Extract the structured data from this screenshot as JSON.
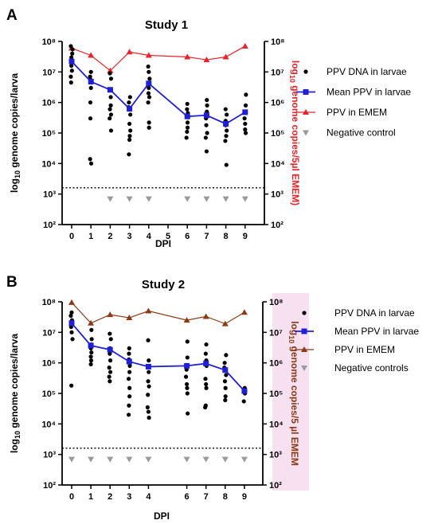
{
  "colors": {
    "dots": "#000000",
    "mean": "#1f1fd6",
    "emem_1": "#e8232a",
    "emem_2": "#8b3a14",
    "negative": "#9a9a9a",
    "highlight": "#f7e0f0"
  },
  "chart_data": [
    {
      "type": "scatter",
      "panel_label": "A",
      "title": "Study 1",
      "xlabel": "DPI",
      "ylabel_left": "log10 genome copies/larva",
      "ylabel_right": "log10 genome copies/5µl EMEM)",
      "y_scale": "log10",
      "ylim": [
        100,
        100000000
      ],
      "x_ticks": [
        0,
        1,
        2,
        3,
        4,
        5,
        6,
        7,
        8,
        9
      ],
      "y_tick_labels": [
        "10²",
        "10³",
        "10⁴",
        "10⁵",
        "10⁶",
        "10⁷",
        "10⁸"
      ],
      "detection_limit": 1600,
      "legend_placement": "right",
      "series": [
        {
          "name": "PPV DNA in larvae",
          "marker": "circle",
          "points": [
            [
              0,
              70000000
            ],
            [
              0,
              55000000
            ],
            [
              0,
              40000000
            ],
            [
              0,
              30000000
            ],
            [
              0,
              22000000
            ],
            [
              0,
              16000000
            ],
            [
              0,
              11000000
            ],
            [
              0,
              7000000
            ],
            [
              0,
              4500000
            ],
            [
              1,
              10000000
            ],
            [
              1,
              7000000
            ],
            [
              1,
              5500000
            ],
            [
              1,
              3000000
            ],
            [
              1,
              1000000
            ],
            [
              1,
              300000
            ],
            [
              1,
              14000
            ],
            [
              1,
              10000
            ],
            [
              2,
              9000000
            ],
            [
              2,
              6000000
            ],
            [
              2,
              2500000
            ],
            [
              2,
              1500000
            ],
            [
              2,
              800000
            ],
            [
              2,
              600000
            ],
            [
              2,
              400000
            ],
            [
              2,
              300000
            ],
            [
              2,
              120000
            ],
            [
              3,
              1500000
            ],
            [
              3,
              1000000
            ],
            [
              3,
              700000
            ],
            [
              3,
              400000
            ],
            [
              3,
              200000
            ],
            [
              3,
              120000
            ],
            [
              3,
              80000
            ],
            [
              3,
              60000
            ],
            [
              3,
              20000
            ],
            [
              4,
              15000000
            ],
            [
              4,
              10000000
            ],
            [
              4,
              6000000
            ],
            [
              4,
              3000000
            ],
            [
              4,
              2000000
            ],
            [
              4,
              1500000
            ],
            [
              4,
              1000000
            ],
            [
              4,
              220000
            ],
            [
              4,
              150000
            ],
            [
              6,
              900000
            ],
            [
              6,
              600000
            ],
            [
              6,
              450000
            ],
            [
              6,
              330000
            ],
            [
              6,
              220000
            ],
            [
              6,
              150000
            ],
            [
              6,
              110000
            ],
            [
              6,
              70000
            ],
            [
              7,
              1200000
            ],
            [
              7,
              800000
            ],
            [
              7,
              500000
            ],
            [
              7,
              300000
            ],
            [
              7,
              180000
            ],
            [
              7,
              100000
            ],
            [
              7,
              70000
            ],
            [
              7,
              25000
            ],
            [
              8,
              600000
            ],
            [
              8,
              400000
            ],
            [
              8,
              250000
            ],
            [
              8,
              180000
            ],
            [
              8,
              120000
            ],
            [
              8,
              80000
            ],
            [
              8,
              55000
            ],
            [
              8,
              9000
            ],
            [
              9,
              1800000
            ],
            [
              9,
              800000
            ],
            [
              9,
              500000
            ],
            [
              9,
              300000
            ],
            [
              9,
              200000
            ],
            [
              9,
              130000
            ],
            [
              9,
              100000
            ]
          ]
        },
        {
          "name": "Mean PPV in larvae",
          "marker": "square",
          "x": [
            0,
            1,
            2,
            3,
            4,
            6,
            7,
            8,
            9
          ],
          "y": [
            22000000,
            4800000,
            2600000,
            620000,
            4200000,
            350000,
            380000,
            200000,
            480000
          ]
        },
        {
          "name": "PPV in EMEM",
          "marker": "triangle-up",
          "x": [
            0,
            1,
            2,
            3,
            4,
            6,
            7,
            8,
            9
          ],
          "y": [
            60000000,
            35000000,
            11000000,
            45000000,
            35000000,
            31000000,
            25000000,
            31000000,
            70000000
          ]
        },
        {
          "name": "Negative control",
          "marker": "triangle-down",
          "x": [
            2,
            3,
            4,
            6,
            7,
            8,
            9
          ],
          "y": [
            700,
            700,
            700,
            700,
            700,
            700,
            700
          ]
        }
      ]
    },
    {
      "type": "scatter",
      "panel_label": "B",
      "title": "Study 2",
      "xlabel": "DPI",
      "ylabel_left": "log10 genome copies/larva",
      "ylabel_right": "log10 genome copies/5 µl EMEM",
      "y_scale": "log10",
      "ylim": [
        100,
        100000000
      ],
      "x_ticks": [
        0,
        1,
        2,
        3,
        4,
        6,
        7,
        8,
        9
      ],
      "y_tick_labels": [
        "10²",
        "10³",
        "10⁴",
        "10⁵",
        "10⁶",
        "10⁷",
        "10⁸"
      ],
      "detection_limit": 1600,
      "legend_placement": "right",
      "series": [
        {
          "name": "PPV DNA in larvae",
          "marker": "circle",
          "points": [
            [
              0,
              45000000
            ],
            [
              0,
              35000000
            ],
            [
              0,
              25000000
            ],
            [
              0,
              15000000
            ],
            [
              0,
              10000000
            ],
            [
              0,
              6000000
            ],
            [
              0,
              180000
            ],
            [
              1,
              12000000
            ],
            [
              1,
              6000000
            ],
            [
              1,
              4000000
            ],
            [
              1,
              3000000
            ],
            [
              1,
              2200000
            ],
            [
              1,
              1600000
            ],
            [
              1,
              1200000
            ],
            [
              1,
              900000
            ],
            [
              2,
              9000000
            ],
            [
              2,
              6000000
            ],
            [
              2,
              3000000
            ],
            [
              2,
              2000000
            ],
            [
              2,
              1200000
            ],
            [
              2,
              700000
            ],
            [
              2,
              500000
            ],
            [
              2,
              350000
            ],
            [
              2,
              250000
            ],
            [
              3,
              3000000
            ],
            [
              3,
              2000000
            ],
            [
              3,
              1300000
            ],
            [
              3,
              800000
            ],
            [
              3,
              500000
            ],
            [
              3,
              300000
            ],
            [
              3,
              150000
            ],
            [
              3,
              80000
            ],
            [
              3,
              40000
            ],
            [
              3,
              20000
            ],
            [
              4,
              5500000
            ],
            [
              4,
              1200000
            ],
            [
              4,
              500000
            ],
            [
              4,
              250000
            ],
            [
              4,
              170000
            ],
            [
              4,
              90000
            ],
            [
              4,
              35000
            ],
            [
              4,
              25000
            ],
            [
              4,
              16000
            ],
            [
              6,
              5000000
            ],
            [
              6,
              1500000
            ],
            [
              6,
              600000
            ],
            [
              6,
              350000
            ],
            [
              6,
              200000
            ],
            [
              6,
              150000
            ],
            [
              6,
              100000
            ],
            [
              6,
              22000
            ],
            [
              7,
              4000000
            ],
            [
              7,
              2000000
            ],
            [
              7,
              1200000
            ],
            [
              7,
              800000
            ],
            [
              7,
              300000
            ],
            [
              7,
              200000
            ],
            [
              7,
              150000
            ],
            [
              7,
              40000
            ],
            [
              7,
              35000
            ],
            [
              8,
              1800000
            ],
            [
              8,
              1000000
            ],
            [
              8,
              700000
            ],
            [
              8,
              400000
            ],
            [
              8,
              250000
            ],
            [
              8,
              150000
            ],
            [
              8,
              80000
            ],
            [
              8,
              60000
            ],
            [
              9,
              150000
            ],
            [
              9,
              120000
            ],
            [
              9,
              100000
            ],
            [
              9,
              55000
            ]
          ]
        },
        {
          "name": "Mean PPV in larvae",
          "marker": "square",
          "x": [
            0,
            1,
            2,
            3,
            4,
            6,
            7,
            8,
            9
          ],
          "y": [
            20000000,
            3700000,
            2700000,
            1100000,
            750000,
            800000,
            950000,
            580000,
            120000
          ]
        },
        {
          "name": "PPV in EMEM",
          "marker": "triangle-up",
          "x": [
            0,
            1,
            2,
            3,
            4,
            6,
            7,
            8,
            9
          ],
          "y": [
            95000000,
            20000000,
            38000000,
            30000000,
            50000000,
            25000000,
            33000000,
            19000000,
            45000000
          ]
        },
        {
          "name": "Negative controls",
          "marker": "triangle-down",
          "x": [
            0,
            1,
            2,
            3,
            4,
            6,
            7,
            8,
            9
          ],
          "y": [
            700,
            700,
            700,
            700,
            700,
            700,
            700,
            700,
            700
          ]
        }
      ]
    }
  ]
}
